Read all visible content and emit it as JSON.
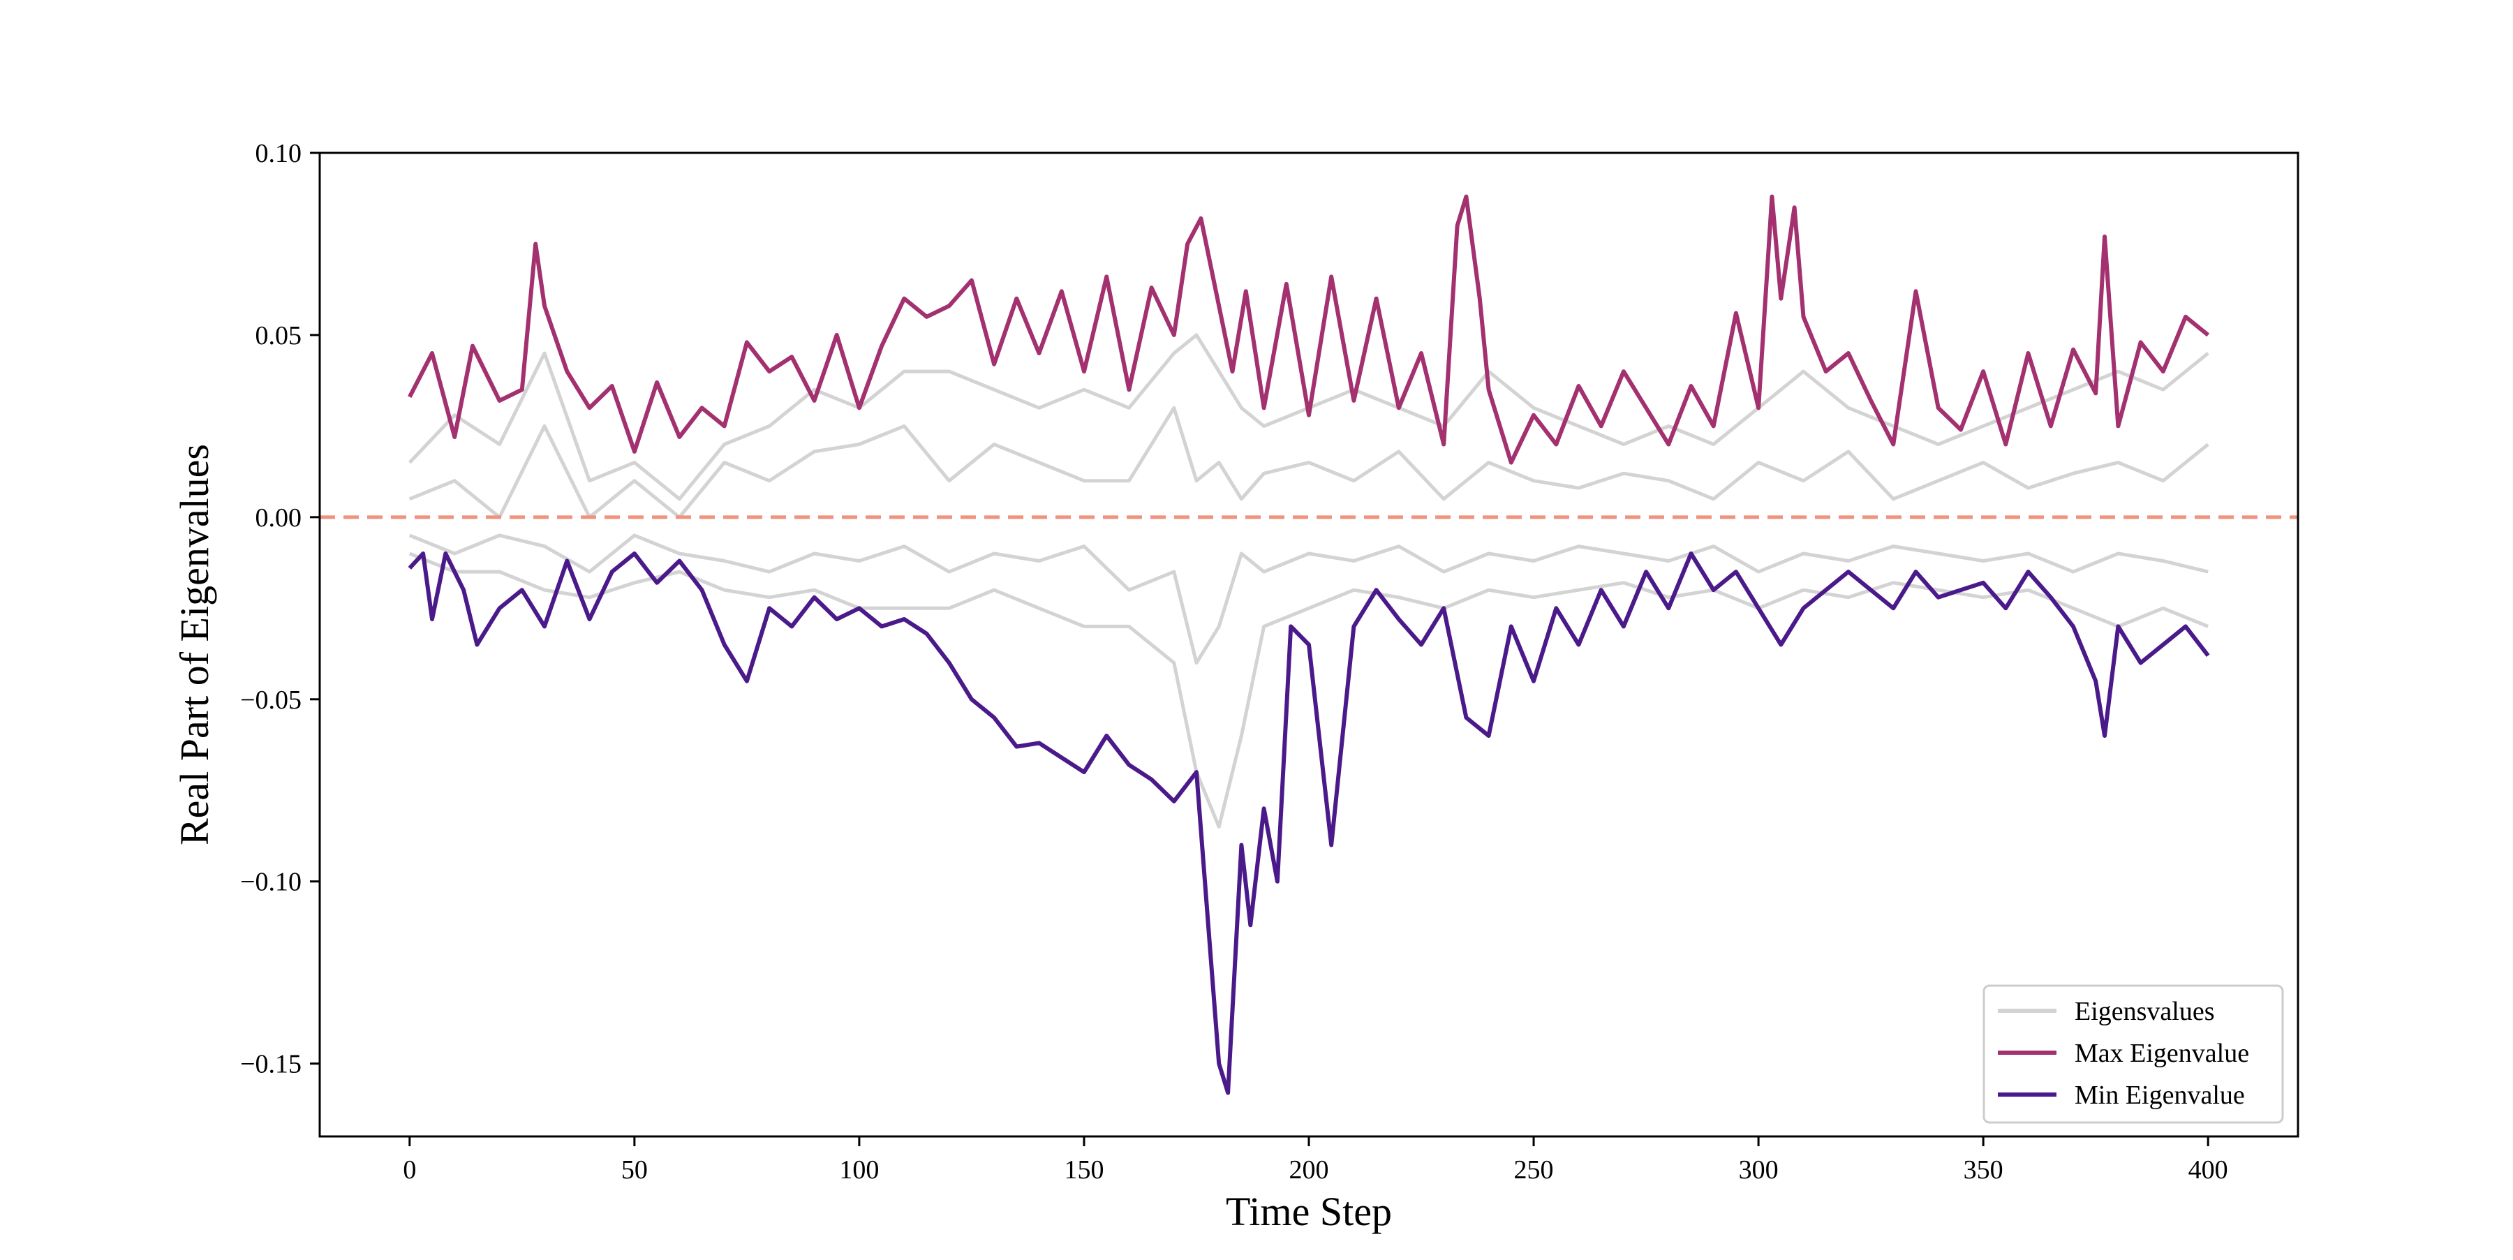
{
  "chart_data": {
    "type": "line",
    "title": "",
    "xlabel": "Time Step",
    "ylabel": "Real Part of Eigenvalues",
    "xlim": [
      -20,
      420
    ],
    "ylim": [
      -0.17,
      0.1
    ],
    "xticks": [
      0,
      50,
      100,
      150,
      200,
      250,
      300,
      350,
      400
    ],
    "xtick_labels": [
      "0",
      "50",
      "100",
      "150",
      "200",
      "250",
      "300",
      "350",
      "400"
    ],
    "yticks": [
      0.1,
      0.05,
      0.0,
      -0.05,
      -0.1,
      -0.15
    ],
    "ytick_labels": [
      "0.10",
      "0.05",
      "0.00",
      "−0.05",
      "−0.10",
      "−0.15"
    ],
    "grid": false,
    "reference_line": {
      "y": 0.0,
      "style": "dashed",
      "color": "#f0927c"
    },
    "legend": {
      "position": "lower-right",
      "entries": [
        {
          "label": "Eigensvalues",
          "color": "#d3d3d3"
        },
        {
          "label": "Max Eigenvalue",
          "color": "#a3306f"
        },
        {
          "label": "Min Eigenvalue",
          "color": "#4b1a8a"
        }
      ]
    },
    "series": [
      {
        "name": "Max Eigenvalue",
        "color": "#a3306f",
        "x": [
          0,
          5,
          10,
          14,
          20,
          25,
          28,
          30,
          35,
          40,
          45,
          50,
          55,
          60,
          65,
          70,
          75,
          80,
          85,
          90,
          95,
          100,
          105,
          110,
          115,
          120,
          125,
          130,
          135,
          140,
          145,
          150,
          155,
          160,
          165,
          170,
          173,
          176,
          180,
          183,
          186,
          190,
          195,
          200,
          205,
          210,
          215,
          220,
          225,
          230,
          233,
          235,
          238,
          240,
          245,
          250,
          255,
          260,
          265,
          270,
          275,
          280,
          285,
          290,
          295,
          300,
          303,
          305,
          308,
          310,
          315,
          320,
          325,
          330,
          335,
          340,
          345,
          350,
          355,
          360,
          365,
          370,
          375,
          377,
          380,
          385,
          390,
          395,
          400
        ],
        "values": [
          0.033,
          0.045,
          0.022,
          0.047,
          0.032,
          0.035,
          0.075,
          0.058,
          0.04,
          0.03,
          0.036,
          0.018,
          0.037,
          0.022,
          0.03,
          0.025,
          0.048,
          0.04,
          0.044,
          0.032,
          0.05,
          0.03,
          0.047,
          0.06,
          0.055,
          0.058,
          0.065,
          0.042,
          0.06,
          0.045,
          0.062,
          0.04,
          0.066,
          0.035,
          0.063,
          0.05,
          0.075,
          0.082,
          0.058,
          0.04,
          0.062,
          0.03,
          0.064,
          0.028,
          0.066,
          0.032,
          0.06,
          0.03,
          0.045,
          0.02,
          0.08,
          0.088,
          0.06,
          0.035,
          0.015,
          0.028,
          0.02,
          0.036,
          0.025,
          0.04,
          0.03,
          0.02,
          0.036,
          0.025,
          0.056,
          0.03,
          0.088,
          0.06,
          0.085,
          0.055,
          0.04,
          0.045,
          0.032,
          0.02,
          0.062,
          0.03,
          0.024,
          0.04,
          0.02,
          0.045,
          0.025,
          0.046,
          0.034,
          0.077,
          0.025,
          0.048,
          0.04,
          0.055,
          0.05
        ]
      },
      {
        "name": "Min Eigenvalue",
        "color": "#4b1a8a",
        "x": [
          0,
          3,
          5,
          8,
          12,
          15,
          20,
          25,
          30,
          35,
          40,
          45,
          50,
          55,
          60,
          65,
          70,
          75,
          80,
          85,
          90,
          95,
          100,
          105,
          110,
          115,
          120,
          125,
          130,
          135,
          140,
          145,
          150,
          155,
          160,
          165,
          170,
          175,
          178,
          180,
          182,
          185,
          187,
          190,
          193,
          196,
          200,
          205,
          210,
          215,
          220,
          225,
          230,
          235,
          240,
          245,
          250,
          255,
          260,
          265,
          270,
          275,
          280,
          285,
          290,
          295,
          300,
          305,
          310,
          315,
          320,
          325,
          330,
          335,
          340,
          345,
          350,
          355,
          360,
          365,
          370,
          375,
          377,
          380,
          385,
          390,
          395,
          400
        ],
        "values": [
          -0.014,
          -0.01,
          -0.028,
          -0.01,
          -0.02,
          -0.035,
          -0.025,
          -0.02,
          -0.03,
          -0.012,
          -0.028,
          -0.015,
          -0.01,
          -0.018,
          -0.012,
          -0.02,
          -0.035,
          -0.045,
          -0.025,
          -0.03,
          -0.022,
          -0.028,
          -0.025,
          -0.03,
          -0.028,
          -0.032,
          -0.04,
          -0.05,
          -0.055,
          -0.063,
          -0.062,
          -0.066,
          -0.07,
          -0.06,
          -0.068,
          -0.072,
          -0.078,
          -0.07,
          -0.118,
          -0.15,
          -0.158,
          -0.09,
          -0.112,
          -0.08,
          -0.1,
          -0.03,
          -0.035,
          -0.09,
          -0.03,
          -0.02,
          -0.028,
          -0.035,
          -0.025,
          -0.055,
          -0.06,
          -0.03,
          -0.045,
          -0.025,
          -0.035,
          -0.02,
          -0.03,
          -0.015,
          -0.025,
          -0.01,
          -0.02,
          -0.015,
          -0.025,
          -0.035,
          -0.025,
          -0.02,
          -0.015,
          -0.02,
          -0.025,
          -0.015,
          -0.022,
          -0.02,
          -0.018,
          -0.025,
          -0.015,
          -0.022,
          -0.03,
          -0.045,
          -0.06,
          -0.03,
          -0.04,
          -0.035,
          -0.03,
          -0.038
        ]
      },
      {
        "name": "Eigensvalues",
        "color": "#d3d3d3",
        "x": [
          0,
          10,
          20,
          30,
          40,
          50,
          60,
          70,
          80,
          90,
          100,
          110,
          120,
          130,
          140,
          150,
          160,
          170,
          175,
          180,
          185,
          190,
          200,
          210,
          220,
          230,
          240,
          250,
          260,
          270,
          280,
          290,
          300,
          310,
          320,
          330,
          340,
          350,
          360,
          370,
          380,
          390,
          400
        ],
        "values": [
          0.015,
          0.028,
          0.02,
          0.045,
          0.01,
          0.015,
          0.005,
          0.02,
          0.025,
          0.035,
          0.03,
          0.04,
          0.04,
          0.035,
          0.03,
          0.035,
          0.03,
          0.045,
          0.05,
          0.04,
          0.03,
          0.025,
          0.03,
          0.035,
          0.03,
          0.025,
          0.04,
          0.03,
          0.025,
          0.02,
          0.025,
          0.02,
          0.03,
          0.04,
          0.03,
          0.025,
          0.02,
          0.025,
          0.03,
          0.035,
          0.04,
          0.035,
          0.045
        ]
      },
      {
        "name": "",
        "color": "#d3d3d3",
        "x": [
          0,
          10,
          20,
          30,
          40,
          50,
          60,
          70,
          80,
          90,
          100,
          110,
          120,
          130,
          140,
          150,
          160,
          170,
          175,
          180,
          185,
          190,
          200,
          210,
          220,
          230,
          240,
          250,
          260,
          270,
          280,
          290,
          300,
          310,
          320,
          330,
          340,
          350,
          360,
          370,
          380,
          390,
          400
        ],
        "values": [
          0.005,
          0.01,
          0.0,
          0.025,
          0.0,
          0.01,
          0.0,
          0.015,
          0.01,
          0.018,
          0.02,
          0.025,
          0.01,
          0.02,
          0.015,
          0.01,
          0.01,
          0.03,
          0.01,
          0.015,
          0.005,
          0.012,
          0.015,
          0.01,
          0.018,
          0.005,
          0.015,
          0.01,
          0.008,
          0.012,
          0.01,
          0.005,
          0.015,
          0.01,
          0.018,
          0.005,
          0.01,
          0.015,
          0.008,
          0.012,
          0.015,
          0.01,
          0.02
        ]
      },
      {
        "name": "",
        "color": "#d3d3d3",
        "x": [
          0,
          10,
          20,
          30,
          40,
          50,
          60,
          70,
          80,
          90,
          100,
          110,
          120,
          130,
          140,
          150,
          160,
          170,
          175,
          180,
          185,
          190,
          200,
          210,
          220,
          230,
          240,
          250,
          260,
          270,
          280,
          290,
          300,
          310,
          320,
          330,
          340,
          350,
          360,
          370,
          380,
          390,
          400
        ],
        "values": [
          -0.005,
          -0.01,
          -0.005,
          -0.008,
          -0.015,
          -0.005,
          -0.01,
          -0.012,
          -0.015,
          -0.01,
          -0.012,
          -0.008,
          -0.015,
          -0.01,
          -0.012,
          -0.008,
          -0.02,
          -0.015,
          -0.04,
          -0.03,
          -0.01,
          -0.015,
          -0.01,
          -0.012,
          -0.008,
          -0.015,
          -0.01,
          -0.012,
          -0.008,
          -0.01,
          -0.012,
          -0.008,
          -0.015,
          -0.01,
          -0.012,
          -0.008,
          -0.01,
          -0.012,
          -0.01,
          -0.015,
          -0.01,
          -0.012,
          -0.015
        ]
      },
      {
        "name": "",
        "color": "#d3d3d3",
        "x": [
          0,
          10,
          20,
          30,
          40,
          50,
          60,
          70,
          80,
          90,
          100,
          110,
          120,
          130,
          140,
          150,
          160,
          170,
          175,
          180,
          185,
          190,
          200,
          210,
          220,
          230,
          240,
          250,
          260,
          270,
          280,
          290,
          300,
          310,
          320,
          330,
          340,
          350,
          360,
          370,
          380,
          390,
          400
        ],
        "values": [
          -0.01,
          -0.015,
          -0.015,
          -0.02,
          -0.022,
          -0.018,
          -0.015,
          -0.02,
          -0.022,
          -0.02,
          -0.025,
          -0.025,
          -0.025,
          -0.02,
          -0.025,
          -0.03,
          -0.03,
          -0.04,
          -0.07,
          -0.085,
          -0.06,
          -0.03,
          -0.025,
          -0.02,
          -0.022,
          -0.025,
          -0.02,
          -0.022,
          -0.02,
          -0.018,
          -0.022,
          -0.02,
          -0.025,
          -0.02,
          -0.022,
          -0.018,
          -0.02,
          -0.022,
          -0.02,
          -0.025,
          -0.03,
          -0.025,
          -0.03
        ]
      }
    ]
  }
}
